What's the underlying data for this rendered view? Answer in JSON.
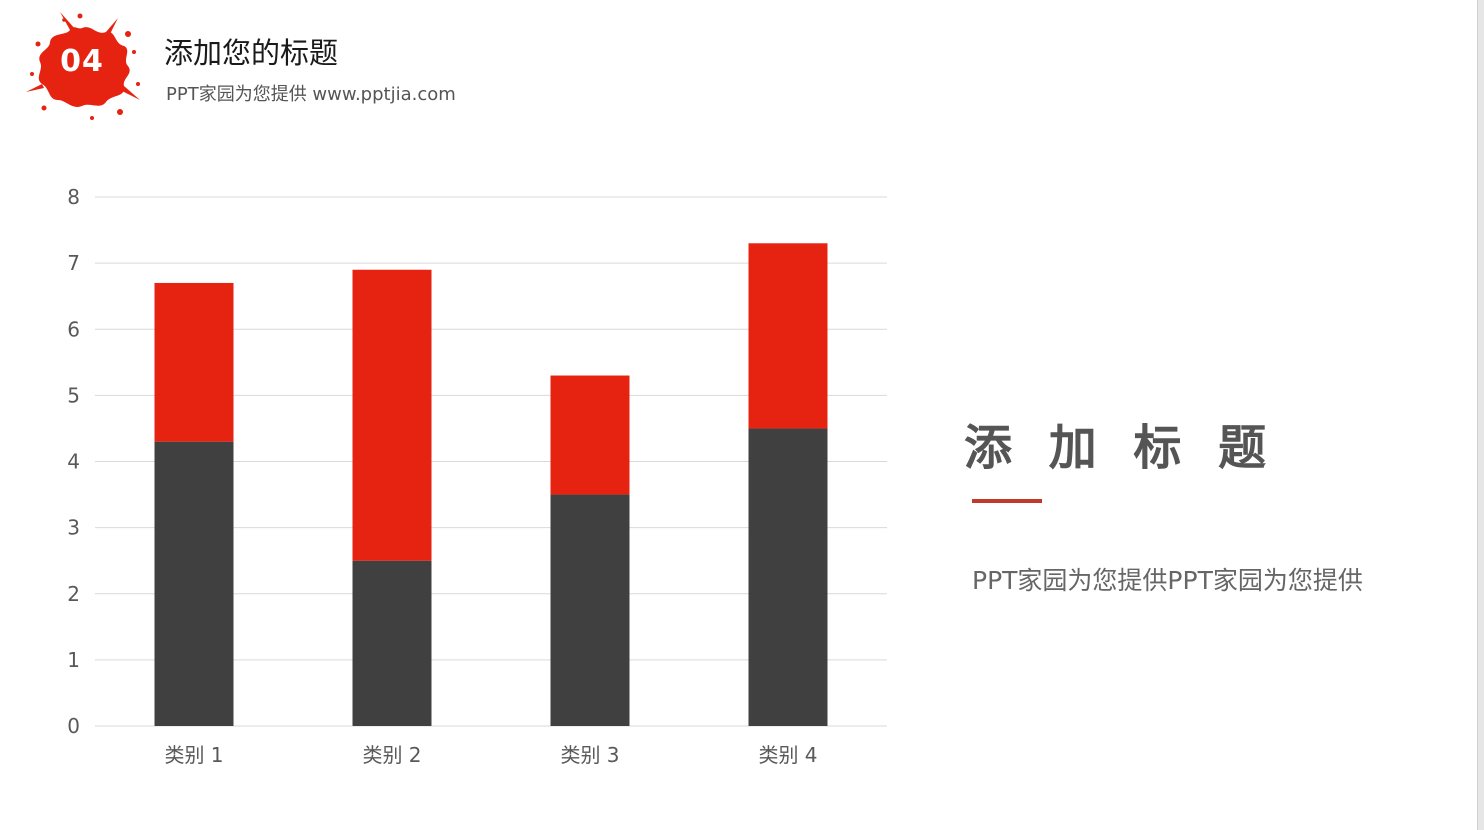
{
  "header": {
    "badge_number": "04",
    "title": "添加您的标题",
    "subtitle": "PPT家园为您提供 www.pptjia.com"
  },
  "side_panel": {
    "title": "添 加 标 题",
    "body": "PPT家园为您提供PPT家园为您提供"
  },
  "colors": {
    "accent": "#e62310",
    "dark": "#404040",
    "divider": "#c0392b"
  },
  "chart_data": {
    "type": "bar",
    "stacked": true,
    "categories": [
      "类别 1",
      "类别 2",
      "类别 3",
      "类别 4"
    ],
    "series": [
      {
        "values": [
          4.3,
          2.5,
          3.5,
          4.5
        ],
        "color": "#404040"
      },
      {
        "values": [
          2.4,
          4.4,
          1.8,
          2.8
        ],
        "color": "#e62310"
      }
    ],
    "ylim": [
      0,
      8
    ],
    "yticks": [
      "0",
      "1",
      "2",
      "3",
      "4",
      "5",
      "6",
      "7",
      "8"
    ],
    "grid": true,
    "legend": "none"
  }
}
